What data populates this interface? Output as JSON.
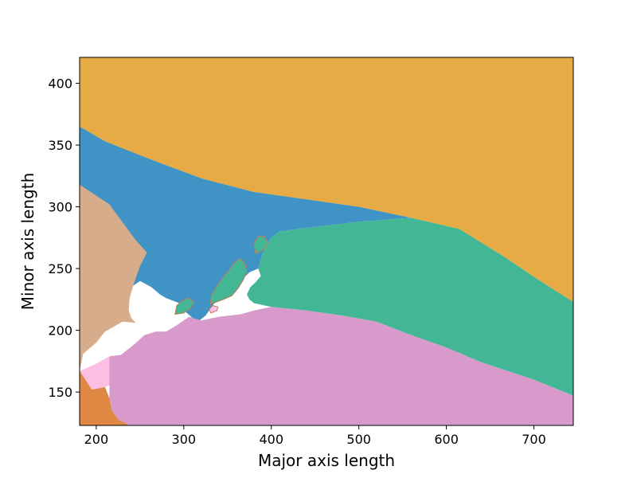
{
  "chart_data": {
    "type": "area",
    "xlabel": "Major axis length",
    "ylabel": "Minor axis length",
    "xlim": [
      181,
      745
    ],
    "ylim": [
      123,
      421
    ],
    "x_ticks": [
      200,
      300,
      400,
      500,
      600,
      700
    ],
    "y_ticks": [
      150,
      200,
      250,
      300,
      350,
      400
    ],
    "regions": [
      {
        "color": "#E6AB44",
        "polygon": [
          [
            181,
            421
          ],
          [
            745,
            421
          ],
          [
            745,
            223
          ],
          [
            705,
            241
          ],
          [
            665,
            260
          ],
          [
            615,
            282
          ],
          [
            560,
            291
          ],
          [
            500,
            300
          ],
          [
            440,
            306
          ],
          [
            380,
            312
          ],
          [
            320,
            323
          ],
          [
            260,
            339
          ],
          [
            210,
            353
          ],
          [
            181,
            365
          ]
        ]
      },
      {
        "color": "#4093C5",
        "polygon": [
          [
            181,
            365
          ],
          [
            210,
            353
          ],
          [
            260,
            339
          ],
          [
            320,
            323
          ],
          [
            380,
            312
          ],
          [
            440,
            306
          ],
          [
            500,
            300
          ],
          [
            560,
            291
          ],
          [
            500,
            288
          ],
          [
            430,
            282
          ],
          [
            410,
            280
          ],
          [
            400,
            275
          ],
          [
            395,
            270
          ],
          [
            390,
            262
          ],
          [
            385,
            250
          ],
          [
            375,
            247
          ],
          [
            365,
            240
          ],
          [
            360,
            232
          ],
          [
            345,
            228
          ],
          [
            335,
            222
          ],
          [
            325,
            212
          ],
          [
            318,
            208
          ],
          [
            310,
            210
          ],
          [
            302,
            215
          ],
          [
            295,
            222
          ],
          [
            280,
            226
          ],
          [
            273,
            229
          ],
          [
            263,
            235
          ],
          [
            250,
            240
          ],
          [
            230,
            230
          ],
          [
            212,
            218
          ],
          [
            196,
            210
          ],
          [
            181,
            200
          ]
        ]
      },
      {
        "color": "#D7AC8B",
        "polygon": [
          [
            181,
            318
          ],
          [
            215,
            302
          ],
          [
            245,
            273
          ],
          [
            258,
            263
          ],
          [
            250,
            252
          ],
          [
            243,
            238
          ],
          [
            238,
            226
          ],
          [
            237,
            216
          ],
          [
            240,
            210
          ],
          [
            245,
            206
          ],
          [
            230,
            207
          ],
          [
            210,
            199
          ],
          [
            200,
            190
          ],
          [
            185,
            181
          ],
          [
            181,
            167
          ]
        ]
      },
      {
        "color": "#43B795",
        "polygon": [
          [
            430,
            282
          ],
          [
            500,
            288
          ],
          [
            560,
            291
          ],
          [
            615,
            282
          ],
          [
            665,
            260
          ],
          [
            705,
            241
          ],
          [
            745,
            223
          ],
          [
            745,
            147
          ],
          [
            700,
            160
          ],
          [
            640,
            174
          ],
          [
            600,
            186
          ],
          [
            560,
            196
          ],
          [
            520,
            207
          ],
          [
            480,
            212
          ],
          [
            440,
            216
          ],
          [
            400,
            219
          ],
          [
            380,
            222
          ],
          [
            375,
            225
          ],
          [
            372,
            229
          ],
          [
            376,
            235
          ],
          [
            382,
            239
          ],
          [
            388,
            244
          ],
          [
            385,
            250
          ],
          [
            390,
            262
          ],
          [
            395,
            270
          ],
          [
            400,
            275
          ],
          [
            410,
            280
          ]
        ]
      },
      {
        "color": "#FBBFE4",
        "polygon": [
          [
            181,
            167
          ],
          [
            200,
            173
          ],
          [
            215,
            179
          ],
          [
            228,
            180
          ],
          [
            244,
            189
          ],
          [
            255,
            196
          ],
          [
            268,
            199
          ],
          [
            280,
            199
          ],
          [
            292,
            204
          ],
          [
            300,
            208
          ],
          [
            306,
            211
          ],
          [
            303,
            199
          ],
          [
            295,
            192
          ],
          [
            282,
            182
          ],
          [
            267,
            171
          ],
          [
            248,
            164
          ],
          [
            228,
            159
          ],
          [
            210,
            154
          ],
          [
            195,
            152
          ],
          [
            181,
            154
          ]
        ]
      },
      {
        "color": "#DF8843",
        "polygon": [
          [
            181,
            167
          ],
          [
            195,
            152
          ],
          [
            210,
            154
          ],
          [
            215,
            145
          ],
          [
            218,
            135
          ],
          [
            225,
            128
          ],
          [
            235,
            124
          ],
          [
            240,
            123
          ],
          [
            181,
            123
          ]
        ]
      },
      {
        "color": "#D89ACB",
        "polygon": [
          [
            240,
            123
          ],
          [
            745,
            123
          ],
          [
            745,
            147
          ],
          [
            700,
            160
          ],
          [
            640,
            174
          ],
          [
            600,
            186
          ],
          [
            560,
            196
          ],
          [
            520,
            207
          ],
          [
            480,
            212
          ],
          [
            440,
            216
          ],
          [
            400,
            219
          ],
          [
            380,
            216
          ],
          [
            365,
            213
          ],
          [
            340,
            211
          ],
          [
            320,
            208
          ],
          [
            306,
            211
          ],
          [
            300,
            208
          ],
          [
            292,
            204
          ],
          [
            280,
            199
          ],
          [
            268,
            199
          ],
          [
            255,
            196
          ],
          [
            244,
            189
          ],
          [
            228,
            180
          ],
          [
            215,
            179
          ],
          [
            215,
            145
          ],
          [
            218,
            135
          ],
          [
            225,
            128
          ],
          [
            235,
            124
          ]
        ]
      },
      {
        "color": "#43B795",
        "polygon": [
          [
            330,
            221
          ],
          [
            345,
            225
          ],
          [
            355,
            228
          ],
          [
            362,
            234
          ],
          [
            368,
            241
          ],
          [
            372,
            247
          ],
          [
            370,
            254
          ],
          [
            364,
            258
          ],
          [
            358,
            255
          ],
          [
            352,
            249
          ],
          [
            345,
            243
          ],
          [
            338,
            236
          ],
          [
            332,
            229
          ]
        ]
      },
      {
        "color": "#43B795",
        "polygon": [
          [
            290,
            213
          ],
          [
            300,
            214
          ],
          [
            308,
            218
          ],
          [
            312,
            223
          ],
          [
            306,
            226
          ],
          [
            298,
            224
          ],
          [
            292,
            220
          ]
        ]
      },
      {
        "color": "#43B795",
        "polygon": [
          [
            382,
            262
          ],
          [
            392,
            266
          ],
          [
            396,
            271
          ],
          [
            392,
            276
          ],
          [
            385,
            276
          ],
          [
            380,
            270
          ]
        ]
      },
      {
        "color": "#FBBFE4",
        "polygon": [
          [
            331,
            214
          ],
          [
            338,
            216
          ],
          [
            339,
            219
          ],
          [
            333,
            220
          ],
          [
            329,
            217
          ]
        ]
      }
    ]
  }
}
